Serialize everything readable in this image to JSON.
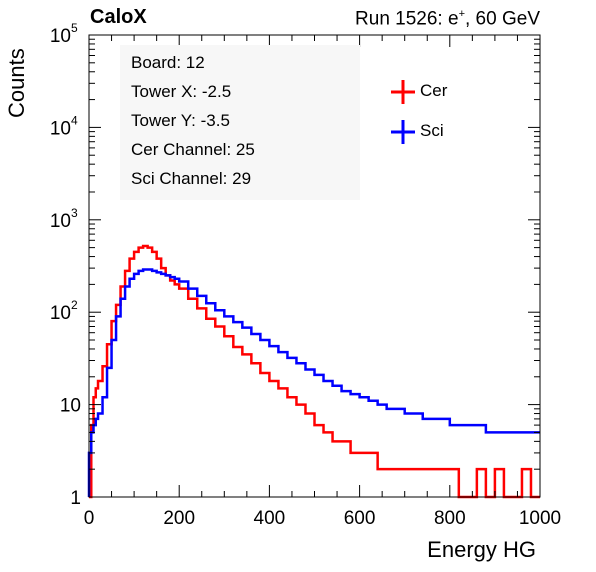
{
  "header": {
    "left_title": "CaloX",
    "right_title_prefix": "Run 1526: e",
    "right_title_sup": "+",
    "right_title_suffix": ", 60 GeV"
  },
  "info": {
    "board": "Board: 12",
    "tower_x": "Tower X: -2.5",
    "tower_y": "Tower Y: -3.5",
    "cer_channel": "Cer Channel: 25",
    "sci_channel": "Sci Channel: 29"
  },
  "chart_data": {
    "type": "line",
    "subtype": "histogram-step",
    "xlabel": "Energy HG",
    "ylabel": "Counts",
    "xlim": [
      0,
      1000
    ],
    "ylim": [
      1,
      100000
    ],
    "yscale": "log",
    "x_ticks": [
      0,
      200,
      400,
      600,
      800,
      1000
    ],
    "x_tick_labels": [
      "0",
      "200",
      "400",
      "600",
      "800",
      "1000"
    ],
    "y_ticks": [
      1,
      10,
      100,
      1000,
      10000,
      100000
    ],
    "y_tick_labels": [
      {
        "base": "1",
        "exp": ""
      },
      {
        "base": "10",
        "exp": ""
      },
      {
        "base": "10",
        "exp": "2"
      },
      {
        "base": "10",
        "exp": "3"
      },
      {
        "base": "10",
        "exp": "4"
      },
      {
        "base": "10",
        "exp": "5"
      }
    ],
    "legend_position": "top-right",
    "series": [
      {
        "name": "Cer",
        "color": "#ff0000",
        "x": [
          0,
          5,
          10,
          15,
          20,
          30,
          40,
          50,
          60,
          70,
          80,
          90,
          100,
          110,
          120,
          130,
          140,
          150,
          160,
          170,
          180,
          190,
          200,
          220,
          240,
          260,
          280,
          300,
          320,
          340,
          360,
          380,
          400,
          420,
          440,
          460,
          480,
          500,
          520,
          540,
          560,
          580,
          600,
          620,
          640,
          660,
          680,
          700,
          720,
          740,
          760,
          780,
          800,
          820,
          840,
          860,
          880,
          900,
          920,
          940,
          960,
          980,
          1000
        ],
        "y": [
          1,
          6,
          12,
          15,
          18,
          26,
          45,
          80,
          120,
          190,
          280,
          380,
          450,
          500,
          520,
          500,
          450,
          380,
          300,
          250,
          220,
          200,
          180,
          140,
          110,
          85,
          70,
          55,
          42,
          35,
          28,
          22,
          18,
          15,
          12,
          10,
          8,
          6,
          5,
          4,
          4,
          3,
          3,
          3,
          2,
          2,
          2,
          2,
          2,
          2,
          2,
          2,
          2,
          1,
          1,
          2,
          1,
          2,
          1,
          1,
          2,
          1,
          1
        ]
      },
      {
        "name": "Sci",
        "color": "#0000ff",
        "x": [
          0,
          5,
          10,
          15,
          20,
          30,
          40,
          50,
          60,
          70,
          80,
          90,
          100,
          110,
          120,
          130,
          140,
          150,
          160,
          170,
          180,
          190,
          200,
          220,
          240,
          260,
          280,
          300,
          320,
          340,
          360,
          380,
          400,
          420,
          440,
          460,
          480,
          500,
          520,
          540,
          560,
          580,
          600,
          620,
          640,
          660,
          680,
          700,
          720,
          740,
          760,
          780,
          800,
          820,
          840,
          860,
          880,
          900,
          920,
          940,
          960,
          980,
          1000
        ],
        "y": [
          3,
          5,
          6,
          7,
          8,
          12,
          25,
          50,
          90,
          140,
          190,
          230,
          260,
          280,
          290,
          290,
          280,
          270,
          260,
          250,
          240,
          230,
          215,
          180,
          150,
          125,
          105,
          90,
          78,
          68,
          58,
          50,
          43,
          37,
          32,
          28,
          24,
          21,
          18,
          16,
          14,
          13,
          12,
          11,
          10,
          9,
          9,
          8,
          8,
          7,
          7,
          7,
          6,
          6,
          6,
          6,
          5,
          5,
          5,
          5,
          5,
          5,
          5
        ]
      }
    ]
  }
}
